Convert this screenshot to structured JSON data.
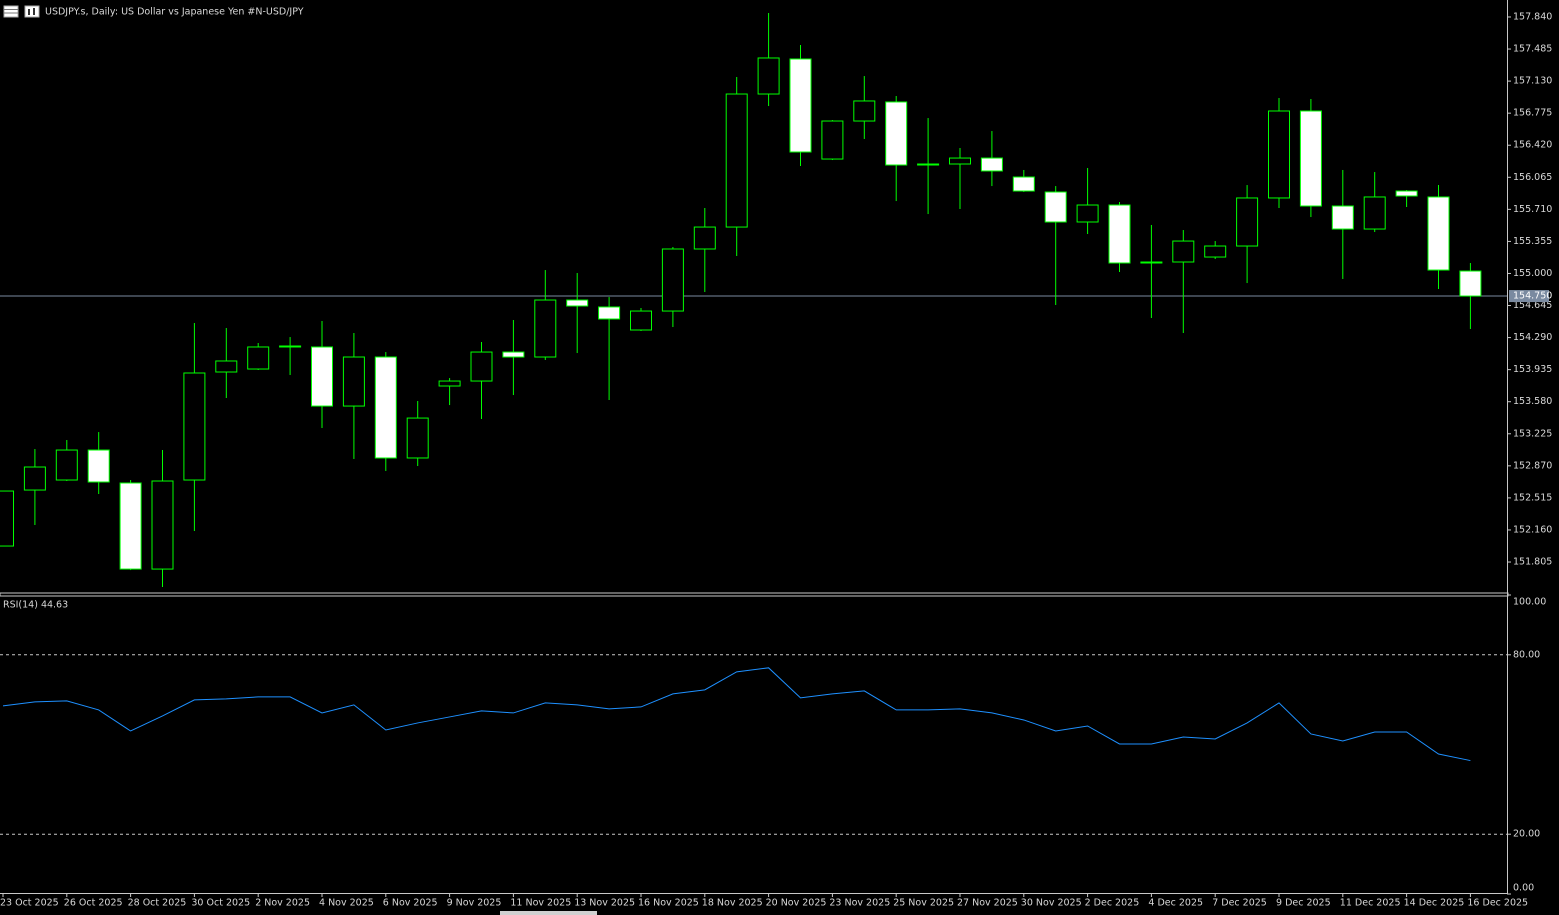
{
  "chart_data": [
    {
      "type": "candlestick",
      "title": "USDJPY.s, Daily:  US Dollar vs  Japanese Yen #N-USD/JPY",
      "categories": [
        "23 Oct 2025",
        null,
        "26 Oct 2025",
        null,
        "28 Oct 2025",
        null,
        "30 Oct 2025",
        null,
        "2 Nov 2025",
        null,
        "4 Nov 2025",
        null,
        "6 Nov 2025",
        null,
        "9 Nov 2025",
        null,
        "11 Nov 2025",
        null,
        "13 Nov 2025",
        null,
        "16 Nov 2025",
        null,
        "18 Nov 2025",
        null,
        "20 Nov 2025",
        null,
        "23 Nov 2025",
        null,
        "25 Nov 2025",
        null,
        "27 Nov 2025",
        null,
        "30 Nov 2025",
        null,
        "2 Dec 2025",
        null,
        "4 Dec 2025",
        null,
        "7 Dec 2025",
        null,
        "9 Dec 2025",
        null,
        "11 Dec 2025",
        null,
        "14 Dec 2025",
        null,
        "16 Dec 2025"
      ],
      "open": [
        151.982,
        152.602,
        152.713,
        153.045,
        152.68,
        151.727,
        152.713,
        153.909,
        153.942,
        154.186,
        154.186,
        153.532,
        154.075,
        152.957,
        153.754,
        153.809,
        154.13,
        154.075,
        154.706,
        154.629,
        154.374,
        154.584,
        155.271,
        155.514,
        156.987,
        157.375,
        156.267,
        156.688,
        156.899,
        156.201,
        156.212,
        156.278,
        156.068,
        155.902,
        155.57,
        155.758,
        155.116,
        155.127,
        155.182,
        155.304,
        155.836,
        156.799,
        155.747,
        155.492,
        155.913,
        155.847,
        155.027
      ],
      "high": [
        152.591,
        153.056,
        153.156,
        153.244,
        152.713,
        153.045,
        154.451,
        154.396,
        154.23,
        154.296,
        154.474,
        154.341,
        154.13,
        153.588,
        153.842,
        154.241,
        154.485,
        155.038,
        155.005,
        154.739,
        154.618,
        155.293,
        155.725,
        157.175,
        157.884,
        157.53,
        156.699,
        157.186,
        156.965,
        156.721,
        156.389,
        156.577,
        156.146,
        155.968,
        156.168,
        155.791,
        155.537,
        155.481,
        155.359,
        155.979,
        156.943,
        156.932,
        156.146,
        156.123,
        155.924,
        155.979,
        155.116
      ],
      "low": [
        151.982,
        152.215,
        152.702,
        152.558,
        151.716,
        151.528,
        152.148,
        153.621,
        153.931,
        153.876,
        153.289,
        152.946,
        152.813,
        152.868,
        153.543,
        153.388,
        153.654,
        154.042,
        154.119,
        153.599,
        154.363,
        154.407,
        154.795,
        155.193,
        156.854,
        156.19,
        156.256,
        156.489,
        155.802,
        155.658,
        155.714,
        155.968,
        155.902,
        154.651,
        155.437,
        155.016,
        154.507,
        154.341,
        155.16,
        154.894,
        155.725,
        155.625,
        154.939,
        155.459,
        155.736,
        154.828,
        154.385
      ],
      "close": [
        152.591,
        152.857,
        153.045,
        152.691,
        151.727,
        152.702,
        153.898,
        154.031,
        154.186,
        154.197,
        153.532,
        154.075,
        152.957,
        153.399,
        153.809,
        154.13,
        154.075,
        154.706,
        154.64,
        154.496,
        154.584,
        155.271,
        155.514,
        156.987,
        157.386,
        156.345,
        156.688,
        156.91,
        156.201,
        156.212,
        156.278,
        156.135,
        155.913,
        155.57,
        155.758,
        155.116,
        155.127,
        155.359,
        155.304,
        155.836,
        156.799,
        155.747,
        155.492,
        155.847,
        155.858,
        155.038,
        154.75
      ],
      "wick_color": "#00ff00",
      "bull_fill": "#000000",
      "bear_fill": "#ffffff",
      "current_price": {
        "value": 154.75,
        "label": "154.750"
      },
      "current_price_color": "#7a8aa0",
      "ylim": [
        151.462,
        158.028
      ],
      "yticks": [
        {
          "value": 157.84,
          "label": "157.840"
        },
        {
          "value": 157.485,
          "label": "157.485"
        },
        {
          "value": 157.13,
          "label": "157.130"
        },
        {
          "value": 156.775,
          "label": "156.775"
        },
        {
          "value": 156.42,
          "label": "156.420"
        },
        {
          "value": 156.065,
          "label": "156.065"
        },
        {
          "value": 155.71,
          "label": "155.710"
        },
        {
          "value": 155.355,
          "label": "155.355"
        },
        {
          "value": 155,
          "label": "155.000"
        },
        {
          "value": 154.645,
          "label": "154.645"
        },
        {
          "value": 154.29,
          "label": "154.290"
        },
        {
          "value": 153.935,
          "label": "153.935"
        },
        {
          "value": 153.58,
          "label": "153.580"
        },
        {
          "value": 153.225,
          "label": "153.225"
        },
        {
          "value": 152.87,
          "label": "152.870"
        },
        {
          "value": 152.515,
          "label": "152.515"
        },
        {
          "value": 152.16,
          "label": "152.160"
        },
        {
          "value": 151.805,
          "label": "151.805"
        }
      ],
      "grid": false
    },
    {
      "type": "line",
      "title": "RSI(14) 44.63",
      "color": "#1e90ff",
      "values": [
        62.9,
        64.25,
        64.58,
        61.56,
        54.52,
        59.55,
        64.92,
        65.25,
        65.92,
        65.92,
        60.56,
        63.24,
        54.86,
        57.21,
        59.22,
        61.23,
        60.56,
        63.91,
        63.24,
        61.9,
        62.57,
        66.93,
        68.27,
        74.3,
        75.64,
        65.59,
        66.93,
        67.93,
        61.56,
        61.56,
        61.9,
        60.56,
        58.21,
        54.52,
        56.2,
        50.17,
        50.17,
        52.51,
        51.84,
        57.21,
        63.91,
        53.52,
        51.17,
        54.19,
        54.19,
        46.82,
        44.63
      ],
      "ylim": [
        0,
        100
      ],
      "yticks": [
        {
          "value": 100,
          "label": "100.00"
        },
        {
          "value": 80,
          "label": "80.00"
        },
        {
          "value": 20,
          "label": "20.00"
        },
        {
          "value": 0,
          "label": "0.00"
        }
      ]
    }
  ]
}
